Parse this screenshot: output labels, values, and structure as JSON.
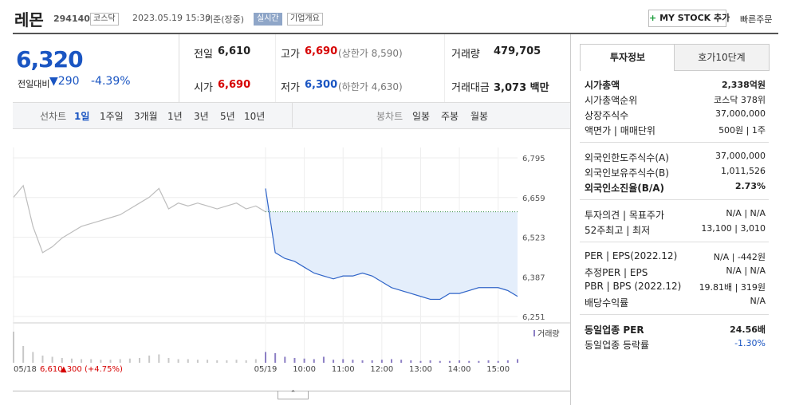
{
  "header": {
    "name": "레몬",
    "code": "294140",
    "market": "코스닥",
    "datetime": "2023.05.19 15:30",
    "basis": "기준(장중)",
    "realtime": "실시간",
    "company": "기업개요",
    "my_stock": "MY STOCK 추가",
    "quick_order": "빠른주문"
  },
  "price": {
    "current": "6,320",
    "change_label": "전일대비",
    "change": "290",
    "rate": "-4.39%"
  },
  "summary": [
    {
      "label": "전일",
      "value": "6,610",
      "color": "#222222"
    },
    {
      "label": "고가",
      "value": "6,690",
      "note": "(상한가 8,590)",
      "color": "#d60000"
    },
    {
      "label": "거래량",
      "value": "479,705",
      "color": "#222222"
    },
    {
      "label": "시가",
      "value": "6,690",
      "color": "#d60000"
    },
    {
      "label": "저가",
      "value": "6,300",
      "note": "(하한가 4,630)",
      "color": "#1a55c2"
    },
    {
      "label": "거래대금",
      "value": "3,073 백만",
      "color": "#222222"
    }
  ],
  "tabs": {
    "line_label": "선차트",
    "line": [
      "1일",
      "1주일",
      "3개월",
      "1년",
      "3년",
      "5년",
      "10년"
    ],
    "candle_label": "봉차트",
    "candle": [
      "일봉",
      "주봉",
      "월봉"
    ]
  },
  "chart_data": {
    "type": "line",
    "xlim": [
      0,
      780
    ],
    "xticks": [
      {
        "value": 0,
        "label": "05/18"
      },
      {
        "value": 390,
        "label": "05/19"
      },
      {
        "value": 450,
        "label": "10:00"
      },
      {
        "value": 510,
        "label": "11:00"
      },
      {
        "value": 570,
        "label": "12:00"
      },
      {
        "value": 630,
        "label": "13:00"
      },
      {
        "value": 690,
        "label": "14:00"
      },
      {
        "value": 750,
        "label": "15:00"
      }
    ],
    "ylim": [
      6251,
      6795
    ],
    "yticks": [
      {
        "value": 6795,
        "label": "6,795"
      },
      {
        "value": 6659,
        "label": "6,659"
      },
      {
        "value": 6523,
        "label": "6,523"
      },
      {
        "value": 6387,
        "label": "6,387"
      },
      {
        "value": 6251,
        "label": "6,251"
      }
    ],
    "grid": true,
    "reference": 6610,
    "series": [
      {
        "name": "05/18",
        "color": "#bdbdbd",
        "x": [
          0,
          15,
          30,
          45,
          60,
          75,
          90,
          105,
          120,
          135,
          150,
          165,
          180,
          195,
          210,
          225,
          240,
          255,
          270,
          285,
          300,
          315,
          330,
          345,
          360,
          375,
          390
        ],
        "values": [
          6660,
          6700,
          6560,
          6470,
          6490,
          6520,
          6540,
          6560,
          6570,
          6580,
          6590,
          6600,
          6620,
          6640,
          6660,
          6690,
          6620,
          6640,
          6630,
          6640,
          6630,
          6620,
          6630,
          6640,
          6620,
          6630,
          6610
        ],
        "volume": [
          26000,
          14000,
          9000,
          6000,
          5000,
          4000,
          3500,
          3000,
          3000,
          2500,
          2500,
          3000,
          3500,
          4000,
          6000,
          7000,
          4000,
          3000,
          3000,
          2500,
          2500,
          2000,
          2000,
          2500,
          2000,
          3000,
          5000
        ]
      },
      {
        "name": "05/19",
        "color": "#2f64c8",
        "x": [
          390,
          405,
          420,
          435,
          450,
          465,
          480,
          495,
          510,
          525,
          540,
          555,
          570,
          585,
          600,
          615,
          630,
          645,
          660,
          675,
          690,
          705,
          720,
          735,
          750,
          765,
          780
        ],
        "values": [
          6690,
          6470,
          6450,
          6440,
          6420,
          6400,
          6390,
          6380,
          6390,
          6390,
          6400,
          6390,
          6370,
          6350,
          6340,
          6330,
          6320,
          6310,
          6310,
          6330,
          6330,
          6340,
          6350,
          6350,
          6350,
          6340,
          6320
        ],
        "volume": [
          9000,
          8000,
          5000,
          4000,
          3500,
          3000,
          5000,
          2500,
          3000,
          2500,
          2000,
          2000,
          2500,
          3000,
          2500,
          2000,
          1500,
          2000,
          1500,
          1500,
          2000,
          1500,
          1500,
          2000,
          1500,
          2000,
          3000
        ]
      }
    ],
    "volume_label": "거래량",
    "volume_lim": [
      0,
      30000
    ],
    "annotation": {
      "date": "05/18",
      "close": "6,610",
      "change": "▲300 (+4.75%)"
    }
  },
  "info": {
    "tabs": [
      "투자정보",
      "호가10단계"
    ],
    "groups": [
      [
        {
          "label": "시가총액",
          "value": "2,338억원",
          "bold": true
        },
        {
          "label": "시가총액순위",
          "value": "코스닥 378위"
        },
        {
          "label": "상장주식수",
          "value": "37,000,000"
        },
        {
          "label": "액면가 | 매매단위",
          "value": "500원 | 1주"
        }
      ],
      [
        {
          "label": "외국인한도주식수(A)",
          "value": "37,000,000"
        },
        {
          "label": "외국인보유주식수(B)",
          "value": "1,011,526"
        },
        {
          "label": "외국인소진율(B/A)",
          "value": "2.73%",
          "bold": true
        }
      ],
      [
        {
          "label": "투자의견 | 목표주가",
          "value": "N/A | N/A"
        },
        {
          "label": "52주최고 | 최저",
          "value": "13,100 | 3,010"
        }
      ],
      [
        {
          "label": "PER | EPS(2022.12)",
          "value": "N/A | -442원"
        },
        {
          "label": "추정PER | EPS",
          "value": "N/A | N/A"
        },
        {
          "label": "PBR | BPS (2022.12)",
          "value": "19.81배 | 319원"
        },
        {
          "label": "배당수익률",
          "value": "N/A"
        }
      ],
      [
        {
          "label": "동일업종 PER",
          "value": "24.56배",
          "bold": true
        },
        {
          "label": "동일업종 등락률",
          "value": "-1.30%",
          "color": "#1a55c2"
        }
      ]
    ]
  }
}
